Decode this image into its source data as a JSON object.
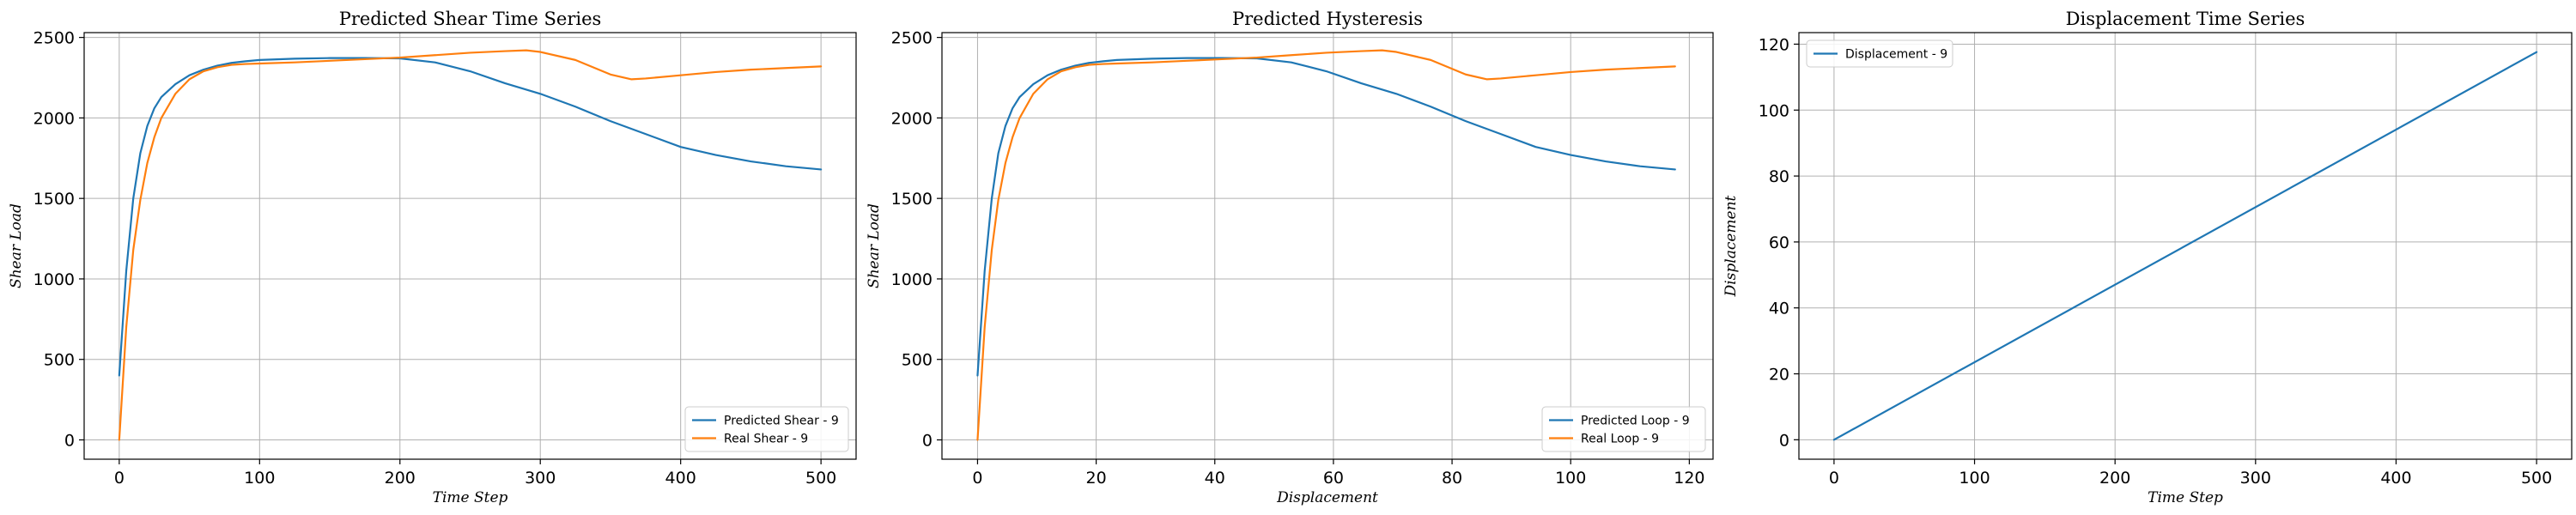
{
  "chart_data": [
    {
      "type": "line",
      "title": "Predicted Shear Time Series",
      "xlabel": "Time Step",
      "ylabel": "Shear Load",
      "xlim": [
        -25,
        525
      ],
      "ylim": [
        -120,
        2530
      ],
      "xticks": [
        0,
        100,
        200,
        300,
        400,
        500
      ],
      "yticks": [
        0,
        500,
        1000,
        1500,
        2000,
        2500
      ],
      "grid": true,
      "legend_position": "lower-right",
      "series": [
        {
          "name": "Predicted Shear - 9",
          "color": "#1f77b4",
          "x": [
            0,
            5,
            10,
            15,
            20,
            25,
            30,
            40,
            50,
            60,
            70,
            80,
            90,
            100,
            125,
            150,
            175,
            200,
            225,
            250,
            275,
            300,
            325,
            350,
            375,
            400,
            425,
            450,
            475,
            500
          ],
          "y": [
            400,
            1050,
            1500,
            1780,
            1950,
            2060,
            2130,
            2210,
            2265,
            2300,
            2325,
            2342,
            2352,
            2360,
            2368,
            2372,
            2372,
            2370,
            2345,
            2290,
            2215,
            2150,
            2070,
            1980,
            1900,
            1820,
            1770,
            1730,
            1700,
            1680
          ]
        },
        {
          "name": "Real Shear - 9",
          "color": "#ff7f0e",
          "x": [
            0,
            5,
            10,
            15,
            20,
            25,
            30,
            40,
            50,
            60,
            70,
            80,
            90,
            100,
            125,
            150,
            175,
            200,
            225,
            250,
            275,
            290,
            300,
            325,
            350,
            365,
            375,
            400,
            425,
            450,
            475,
            500
          ],
          "y": [
            0,
            700,
            1180,
            1490,
            1720,
            1880,
            2000,
            2150,
            2240,
            2290,
            2315,
            2330,
            2335,
            2338,
            2345,
            2355,
            2365,
            2375,
            2390,
            2405,
            2415,
            2420,
            2410,
            2360,
            2270,
            2240,
            2245,
            2265,
            2285,
            2300,
            2310,
            2320
          ]
        }
      ]
    },
    {
      "type": "line",
      "title": "Predicted Hysteresis",
      "xlabel": "Displacement",
      "ylabel": "Shear Load",
      "xlim": [
        -6,
        124
      ],
      "ylim": [
        -120,
        2530
      ],
      "xticks": [
        0,
        20,
        40,
        60,
        80,
        100,
        120
      ],
      "yticks": [
        0,
        500,
        1000,
        1500,
        2000,
        2500
      ],
      "grid": true,
      "legend_position": "lower-right",
      "series": [
        {
          "name": "Predicted Loop - 9",
          "color": "#1f77b4",
          "x": [
            0,
            1.2,
            2.4,
            3.5,
            4.7,
            5.9,
            7.1,
            9.4,
            11.8,
            14.1,
            16.5,
            18.8,
            21.2,
            23.5,
            29.4,
            35.3,
            41.2,
            47.1,
            52.9,
            58.8,
            64.7,
            70.6,
            76.4,
            82.3,
            88.2,
            94.1,
            100,
            105.9,
            111.7,
            117.6
          ],
          "y": [
            400,
            1050,
            1500,
            1780,
            1950,
            2060,
            2130,
            2210,
            2265,
            2300,
            2325,
            2342,
            2352,
            2360,
            2368,
            2372,
            2372,
            2370,
            2345,
            2290,
            2215,
            2150,
            2070,
            1980,
            1900,
            1820,
            1770,
            1730,
            1700,
            1680
          ]
        },
        {
          "name": "Real Loop - 9",
          "color": "#ff7f0e",
          "x": [
            0,
            1.2,
            2.4,
            3.5,
            4.7,
            5.9,
            7.1,
            9.4,
            11.8,
            14.1,
            16.5,
            18.8,
            21.2,
            23.5,
            29.4,
            35.3,
            41.2,
            47.1,
            52.9,
            58.8,
            64.7,
            68.2,
            70.6,
            76.4,
            82.3,
            85.9,
            88.2,
            94.1,
            100,
            105.9,
            111.7,
            117.6
          ],
          "y": [
            0,
            700,
            1180,
            1490,
            1720,
            1880,
            2000,
            2150,
            2240,
            2290,
            2315,
            2330,
            2335,
            2338,
            2345,
            2355,
            2365,
            2375,
            2390,
            2405,
            2415,
            2420,
            2410,
            2360,
            2270,
            2240,
            2245,
            2265,
            2285,
            2300,
            2310,
            2320
          ]
        }
      ]
    },
    {
      "type": "line",
      "title": "Displacement Time Series",
      "xlabel": "Time Step",
      "ylabel": "Displacement",
      "xlim": [
        -25,
        525
      ],
      "ylim": [
        -5.9,
        123.5
      ],
      "xticks": [
        0,
        100,
        200,
        300,
        400,
        500
      ],
      "yticks": [
        0,
        20,
        40,
        60,
        80,
        100,
        120
      ],
      "grid": true,
      "legend_position": "top-left",
      "series": [
        {
          "name": "Displacement - 9",
          "color": "#1f77b4",
          "x": [
            0,
            500
          ],
          "y": [
            0,
            117.6
          ]
        }
      ]
    }
  ]
}
